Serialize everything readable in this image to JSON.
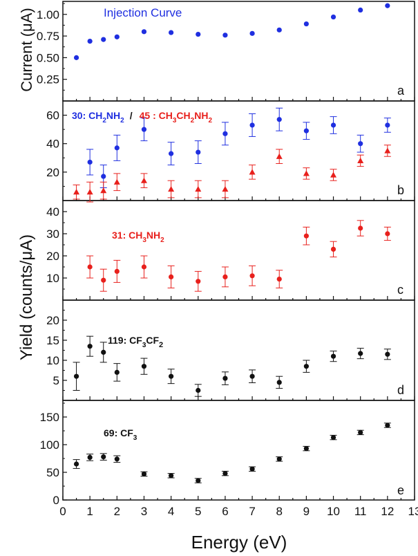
{
  "figure": {
    "xlabel": "Energy (eV)",
    "ylabel_top": "Current (μA)",
    "ylabel_bottom": "Yield (counts/μA)",
    "x_ticks": [
      0,
      1,
      2,
      3,
      4,
      5,
      6,
      7,
      8,
      9,
      10,
      11,
      12,
      13
    ]
  },
  "chart_data": [
    {
      "type": "scatter",
      "panel": "a",
      "title": "Injection Curve",
      "ylabel": "Current (μA)",
      "xlim": [
        0,
        13
      ],
      "ylim": [
        0,
        1.15
      ],
      "yticks": [
        0.25,
        0.5,
        0.75,
        1.0,
        1.25
      ],
      "ytick_labels": [
        "0.25",
        "0.50",
        "0.75",
        "1.00",
        ""
      ],
      "series": [
        {
          "name": "Injection Curve",
          "marker": "circle",
          "color": "#1f2fe0",
          "x": [
            0.5,
            1,
            1.5,
            2,
            3,
            4,
            5,
            6,
            7,
            8,
            9,
            10,
            11,
            12
          ],
          "y": [
            0.5,
            0.69,
            0.71,
            0.74,
            0.8,
            0.79,
            0.77,
            0.76,
            0.78,
            0.82,
            0.89,
            0.97,
            1.05,
            1.1
          ]
        }
      ]
    },
    {
      "type": "scatter",
      "panel": "b",
      "ylim": [
        0,
        70
      ],
      "yticks": [
        20,
        40,
        60
      ],
      "series": [
        {
          "name": "30: CH2NH2",
          "marker": "circle",
          "color": "#1f2fe0",
          "x": [
            1,
            1.5,
            2,
            3,
            4,
            5,
            6,
            7,
            8,
            9,
            10,
            11,
            12
          ],
          "y": [
            27,
            17,
            37,
            50,
            33,
            34,
            47,
            53,
            57,
            49,
            53,
            40,
            53
          ],
          "err": [
            9,
            8,
            9,
            8,
            8,
            8,
            8,
            8,
            8,
            6,
            6,
            6,
            5
          ]
        },
        {
          "name": "45 : CH3CH2NH2",
          "marker": "triangle",
          "color": "#e8201c",
          "x": [
            0.5,
            1,
            1.5,
            2,
            3,
            4,
            5,
            6,
            7,
            8,
            9,
            10,
            11,
            12
          ],
          "y": [
            6,
            6,
            7,
            13,
            14,
            8,
            8,
            8,
            20,
            31,
            19,
            18,
            28,
            35
          ],
          "err": [
            5,
            7,
            6,
            6,
            5,
            6,
            6,
            6,
            5,
            5,
            4,
            4,
            4,
            4
          ]
        }
      ]
    },
    {
      "type": "scatter",
      "panel": "c",
      "ylim": [
        0,
        45
      ],
      "yticks": [
        10,
        20,
        30,
        40
      ],
      "series": [
        {
          "name": "31: CH3NH2",
          "marker": "circle",
          "color": "#e8201c",
          "x": [
            1,
            1.5,
            2,
            3,
            4,
            5,
            6,
            7,
            8,
            9,
            10,
            11,
            12
          ],
          "y": [
            15,
            9,
            13,
            15,
            10.5,
            8.5,
            10.5,
            11,
            9.5,
            29,
            23,
            32.5,
            30
          ],
          "err": [
            5,
            5,
            5,
            5,
            5,
            4.5,
            4.5,
            4.5,
            4,
            4,
            3.5,
            3.5,
            3
          ]
        }
      ]
    },
    {
      "type": "scatter",
      "panel": "d",
      "ylim": [
        0,
        25
      ],
      "yticks": [
        5,
        10,
        15,
        20
      ],
      "series": [
        {
          "name": "119: CF3CF2",
          "marker": "circle",
          "color": "#111111",
          "x": [
            0.5,
            1,
            1.5,
            2,
            3,
            4,
            5,
            6,
            7,
            8,
            9,
            10,
            11,
            12
          ],
          "y": [
            6,
            13.5,
            12,
            7,
            8.5,
            6,
            2.5,
            5.5,
            6,
            4.5,
            8.5,
            11,
            11.7,
            11.5
          ],
          "err": [
            3.5,
            2.5,
            2.5,
            2.2,
            2,
            1.8,
            1.5,
            1.6,
            1.6,
            1.5,
            1.5,
            1.3,
            1.3,
            1.3
          ]
        }
      ]
    },
    {
      "type": "scatter",
      "panel": "e",
      "ylim": [
        0,
        180
      ],
      "yticks": [
        0,
        50,
        100,
        150
      ],
      "series": [
        {
          "name": "69: CF3",
          "marker": "circle",
          "color": "#111111",
          "x": [
            0.5,
            1,
            1.5,
            2,
            3,
            4,
            5,
            6,
            7,
            8,
            9,
            10,
            11,
            12
          ],
          "y": [
            65,
            77,
            78,
            74,
            47,
            44,
            35,
            48,
            56,
            74,
            93,
            113,
            122,
            135
          ],
          "err": [
            8,
            6,
            6,
            6,
            4,
            4,
            4,
            4,
            4,
            4,
            4,
            4,
            4,
            4
          ]
        }
      ]
    }
  ],
  "labels": {
    "a": {
      "letter": "a",
      "title": "Injection Curve"
    },
    "b": {
      "letter": "b",
      "s1_pre": "30: CH",
      "s1_sub": "2",
      "s1_mid": "NH",
      "s1_sub2": "2",
      "slash": "/",
      "s2_pre": "45 : CH",
      "s2_sub1": "3",
      "s2_mid1": "CH",
      "s2_sub2": "2",
      "s2_mid2": "NH",
      "s2_sub3": "2"
    },
    "c": {
      "letter": "c",
      "pre": "31: CH",
      "sub1": "3",
      "mid": "NH",
      "sub2": "2"
    },
    "d": {
      "letter": "d",
      "pre": "119: CF",
      "sub1": "3",
      "mid": "CF",
      "sub2": "2"
    },
    "e": {
      "letter": "e",
      "pre": "69: CF",
      "sub1": "3"
    }
  }
}
